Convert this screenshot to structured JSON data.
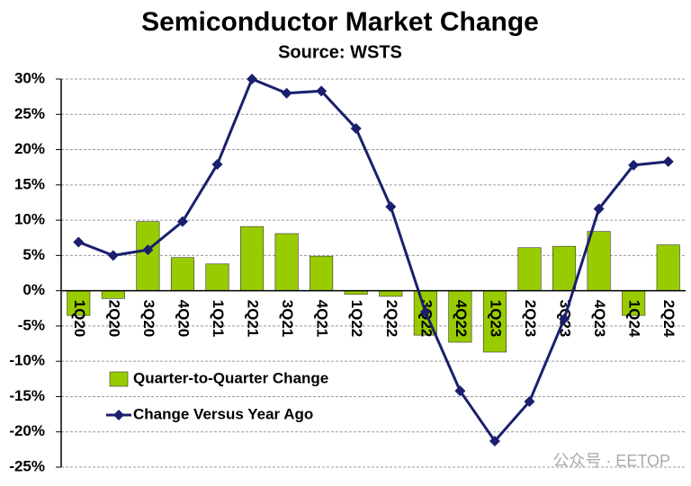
{
  "chart_data": {
    "type": "bar_line",
    "title": "Semiconductor Market Change",
    "subtitle": "Source: WSTS",
    "categories": [
      "1Q20",
      "2Q20",
      "3Q20",
      "4Q20",
      "1Q21",
      "2Q21",
      "3Q21",
      "4Q21",
      "1Q22",
      "2Q22",
      "3Q22",
      "4Q22",
      "1Q23",
      "2Q23",
      "3Q23",
      "4Q23",
      "1Q24",
      "2Q24"
    ],
    "series": [
      {
        "name": "Quarter-to-Quarter Change",
        "kind": "bar",
        "color": "#99cc00",
        "values": [
          -3.5,
          -1.1,
          9.8,
          4.7,
          3.8,
          9.1,
          8.1,
          4.9,
          -0.5,
          -0.8,
          -6.3,
          -7.3,
          -8.7,
          6.1,
          6.3,
          8.4,
          -3.5,
          6.5
        ]
      },
      {
        "name": "Change Versus Year Ago",
        "kind": "line",
        "color": "#1a1f6e",
        "values": [
          6.9,
          5.0,
          5.8,
          9.8,
          17.9,
          30.0,
          28.0,
          28.3,
          23.0,
          11.9,
          -3.0,
          -14.2,
          -21.3,
          -15.7,
          -4.0,
          11.6,
          17.8,
          18.3
        ]
      }
    ],
    "ylim": [
      -25,
      30
    ],
    "yticks": [
      {
        "value": -25,
        "label": "-25%"
      },
      {
        "value": -20,
        "label": "-20%"
      },
      {
        "value": -15,
        "label": "-15%"
      },
      {
        "value": -10,
        "label": "-10%"
      },
      {
        "value": -5,
        "label": "-5%"
      },
      {
        "value": 0,
        "label": "0%"
      },
      {
        "value": 5,
        "label": "5%"
      },
      {
        "value": 10,
        "label": "10%"
      },
      {
        "value": 15,
        "label": "15%"
      },
      {
        "value": 20,
        "label": "20%"
      },
      {
        "value": 25,
        "label": "25%"
      },
      {
        "value": 30,
        "label": "30%"
      }
    ],
    "grid": true,
    "legend": "lower-left",
    "watermark": "公众号 · EETOP"
  }
}
